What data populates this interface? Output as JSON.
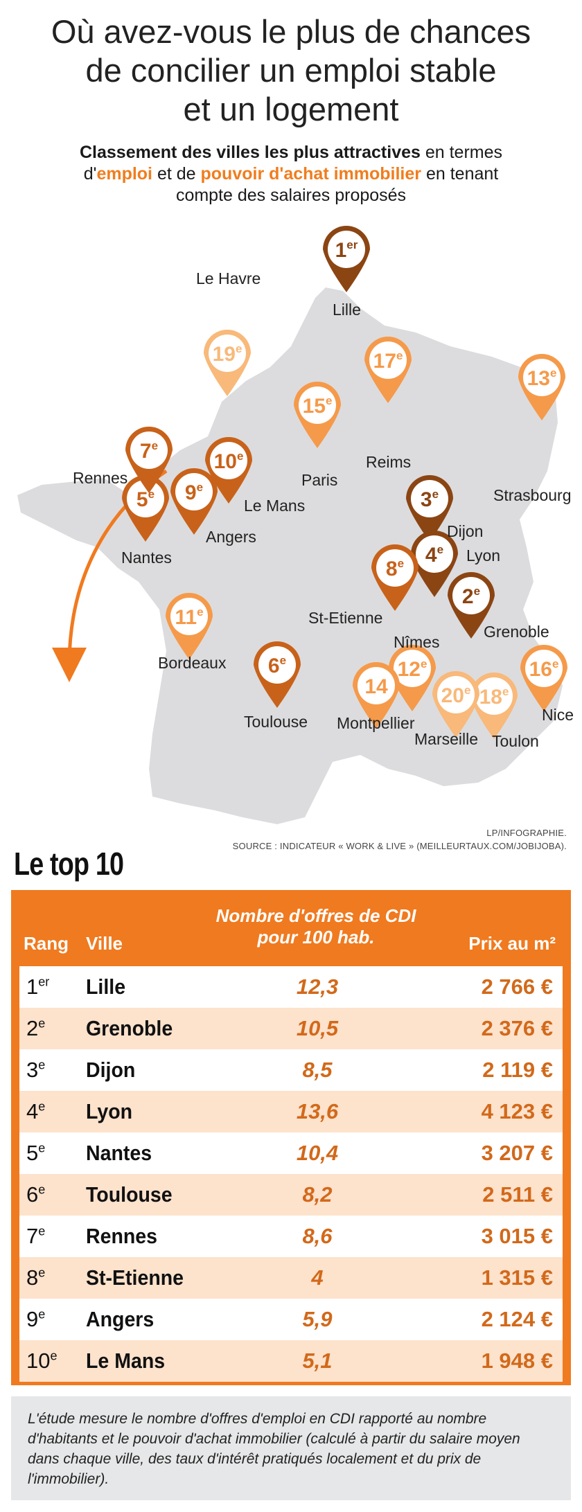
{
  "title": {
    "line1": "Où avez-vous le plus de chances",
    "line2": "de concilier un emploi stable",
    "line3": "et un logement"
  },
  "subtitle": {
    "part1": "Classement des villes les plus attractives",
    "part2": " en termes",
    "part3": "d'",
    "part4": "emploi",
    "part5": " et de ",
    "part6": "pouvoir d'achat immobilier",
    "part7": " en tenant",
    "part8": "compte des salaires proposés"
  },
  "colors": {
    "accent": "#f07a1f",
    "dark_pin": "#8b4513",
    "mid_pin": "#c8621a",
    "light_pin": "#f59a4a",
    "pale_pin": "#f8b97a",
    "map_land": "#dcdcde"
  },
  "map": {
    "cities": [
      {
        "name": "Lille",
        "rank": "1",
        "sup": "er"
      },
      {
        "name": "Grenoble",
        "rank": "2",
        "sup": "e"
      },
      {
        "name": "Dijon",
        "rank": "3",
        "sup": "e"
      },
      {
        "name": "Lyon",
        "rank": "4",
        "sup": "e"
      },
      {
        "name": "Nantes",
        "rank": "5",
        "sup": "e"
      },
      {
        "name": "Toulouse",
        "rank": "6",
        "sup": "e"
      },
      {
        "name": "Rennes",
        "rank": "7",
        "sup": "e"
      },
      {
        "name": "St-Etienne",
        "rank": "8",
        "sup": "e"
      },
      {
        "name": "Angers",
        "rank": "9",
        "sup": "e"
      },
      {
        "name": "Le Mans",
        "rank": "10",
        "sup": "e"
      },
      {
        "name": "Bordeaux",
        "rank": "11",
        "sup": "e"
      },
      {
        "name": "Nîmes",
        "rank": "12",
        "sup": "e"
      },
      {
        "name": "Strasbourg",
        "rank": "13",
        "sup": "e"
      },
      {
        "name": "Montpellier",
        "rank": "14",
        "sup": ""
      },
      {
        "name": "Paris",
        "rank": "15",
        "sup": "e"
      },
      {
        "name": "Nice",
        "rank": "16",
        "sup": "e"
      },
      {
        "name": "Reims",
        "rank": "17",
        "sup": "e"
      },
      {
        "name": "Toulon",
        "rank": "18",
        "sup": "e"
      },
      {
        "name": "Le Havre",
        "rank": "19",
        "sup": "e"
      },
      {
        "name": "Marseille",
        "rank": "20",
        "sup": "e"
      }
    ]
  },
  "source": {
    "line1": "LP/INFOGRAPHIE.",
    "line2": "SOURCE : INDICATEUR « WORK & LIVE » (MEILLEURTAUX.COM/JOBIJOBA)."
  },
  "top10": {
    "title": "Le top 10",
    "headers": {
      "rang": "Rang",
      "ville": "Ville",
      "offres_line1": "Nombre d'offres de CDI",
      "offres_line2": "pour 100 hab.",
      "prix": "Prix au m²"
    },
    "rows": [
      {
        "rank": "1",
        "sup": "er",
        "city": "Lille",
        "offres": "12,3",
        "prix": "2 766 €"
      },
      {
        "rank": "2",
        "sup": "e",
        "city": "Grenoble",
        "offres": "10,5",
        "prix": "2 376 €"
      },
      {
        "rank": "3",
        "sup": "e",
        "city": "Dijon",
        "offres": "8,5",
        "prix": "2 119 €"
      },
      {
        "rank": "4",
        "sup": "e",
        "city": "Lyon",
        "offres": "13,6",
        "prix": "4 123 €"
      },
      {
        "rank": "5",
        "sup": "e",
        "city": "Nantes",
        "offres": "10,4",
        "prix": "3 207 €"
      },
      {
        "rank": "6",
        "sup": "e",
        "city": "Toulouse",
        "offres": "8,2",
        "prix": "2 511 €"
      },
      {
        "rank": "7",
        "sup": "e",
        "city": "Rennes",
        "offres": "8,6",
        "prix": "3 015 €"
      },
      {
        "rank": "8",
        "sup": "e",
        "city": "St-Etienne",
        "offres": "4",
        "prix": "1 315 €"
      },
      {
        "rank": "9",
        "sup": "e",
        "city": "Angers",
        "offres": "5,9",
        "prix": "2 124 €"
      },
      {
        "rank": "10",
        "sup": "e",
        "city": "Le Mans",
        "offres": "5,1",
        "prix": "1 948 €"
      }
    ]
  },
  "note": {
    "text": "L'étude mesure le nombre d'offres d'emploi en CDI rapporté au nombre d'habitants et le pouvoir d'achat immobilier (calculé à partir du salaire moyen dans chaque ville, des taux d'intérêt pratiqués localement et du prix de l'immobilier)."
  }
}
